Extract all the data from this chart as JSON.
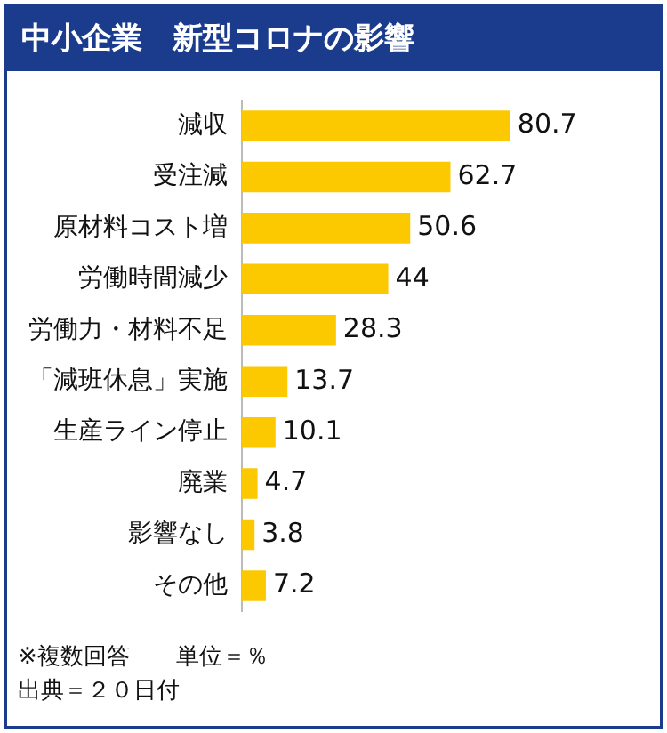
{
  "chart_data": {
    "type": "bar",
    "orientation": "horizontal",
    "title": "中小企業　新型コロナの影響",
    "categories": [
      "減収",
      "受注減",
      "原材料コスト増",
      "労働時間減少",
      "労働力・材料不足",
      "「減班休息」実施",
      "生産ライン停止",
      "廃業",
      "影響なし",
      "その他"
    ],
    "values": [
      80.7,
      62.7,
      50.6,
      44,
      28.3,
      13.7,
      10.1,
      4.7,
      3.8,
      7.2
    ],
    "color": "#fcc800",
    "tick_labels": "y",
    "legend": false,
    "data_labels": true,
    "annotations": [
      "※複数回答　　単位＝％",
      "出典＝２０日付"
    ]
  }
}
